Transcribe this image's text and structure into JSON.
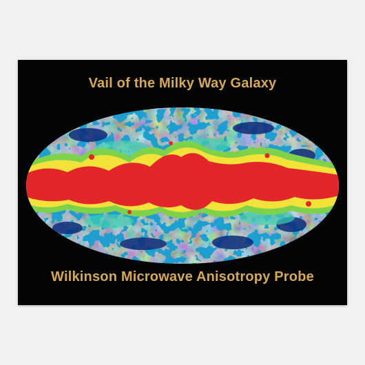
{
  "poster": {
    "title": "Vail of the Milky Way Galaxy",
    "subtitle": "Wilkinson Microwave Anisotropy Probe"
  },
  "colors": {
    "background": "#050505",
    "text": "#d4a95c",
    "galactic_band": "#e3262a",
    "warm": "#f2e23a",
    "mid": "#22b5d8",
    "cool": "#1a3f9c",
    "deep": "#0b1a5c"
  }
}
